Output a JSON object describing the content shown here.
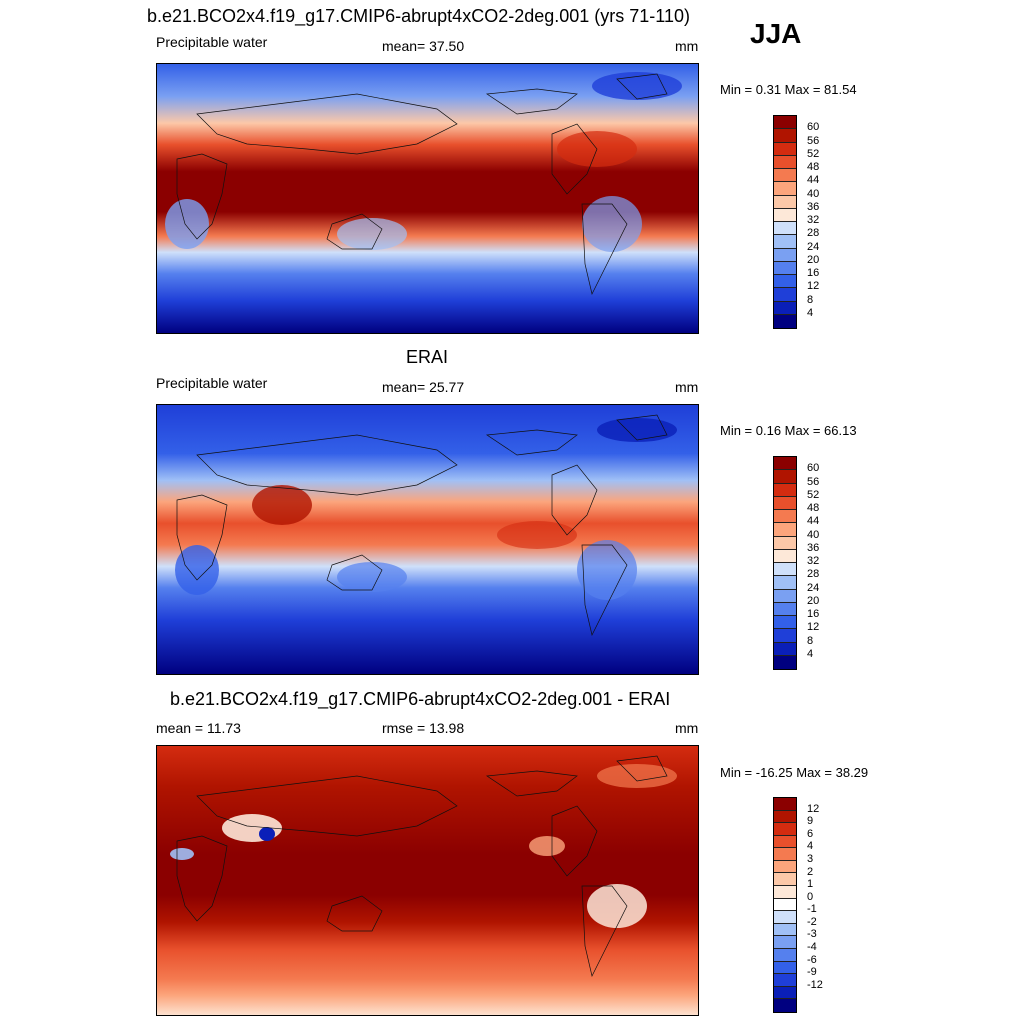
{
  "season": "JJA",
  "panels": [
    {
      "title": "b.e21.BCO2x4.f19_g17.CMIP6-abrupt4xCO2-2deg.001 (yrs 71-110)",
      "variable": "Precipitable water",
      "stat": "mean=  37.50",
      "units": "mm",
      "minmax": "Min =   0.31 Max =  81.54",
      "colorbar_labels": [
        "60",
        "56",
        "52",
        "48",
        "44",
        "40",
        "36",
        "32",
        "28",
        "24",
        "20",
        "16",
        "12",
        "8",
        "4"
      ]
    },
    {
      "title": "ERAI",
      "variable": "Precipitable water",
      "stat": "mean=  25.77",
      "units": "mm",
      "minmax": "Min =   0.16 Max =  66.13",
      "colorbar_labels": [
        "60",
        "56",
        "52",
        "48",
        "44",
        "40",
        "36",
        "32",
        "28",
        "24",
        "20",
        "16",
        "12",
        "8",
        "4"
      ]
    },
    {
      "title": "b.e21.BCO2x4.f19_g17.CMIP6-abrupt4xCO2-2deg.001 - ERAI",
      "variable": "mean =  11.73",
      "stat": "rmse =  13.98",
      "units": "mm",
      "minmax": "Min = -16.25 Max =  38.29",
      "colorbar_labels": [
        "12",
        "9",
        "6",
        "4",
        "3",
        "2",
        "1",
        "0",
        "-1",
        "-2",
        "-3",
        "-4",
        "-6",
        "-9",
        "-12"
      ]
    }
  ],
  "colors": {
    "abs_scale": [
      "#000080",
      "#0a1fb8",
      "#1f3fd8",
      "#3360e8",
      "#5580ee",
      "#7aa0f2",
      "#a0c0f6",
      "#cfe0fa",
      "#fde8d8",
      "#fcc8a8",
      "#fca57c",
      "#f47a50",
      "#e8502c",
      "#d42c10",
      "#b01400",
      "#8b0000"
    ],
    "diff_scale": [
      "#000080",
      "#0a1fb8",
      "#1f3fd8",
      "#3360e8",
      "#5580ee",
      "#7aa0f2",
      "#a0c0f6",
      "#cfe0fa",
      "#ffffff",
      "#fde8d8",
      "#fcc8a8",
      "#fca57c",
      "#f47a50",
      "#e8502c",
      "#d42c10",
      "#b01400",
      "#8b0000"
    ]
  }
}
